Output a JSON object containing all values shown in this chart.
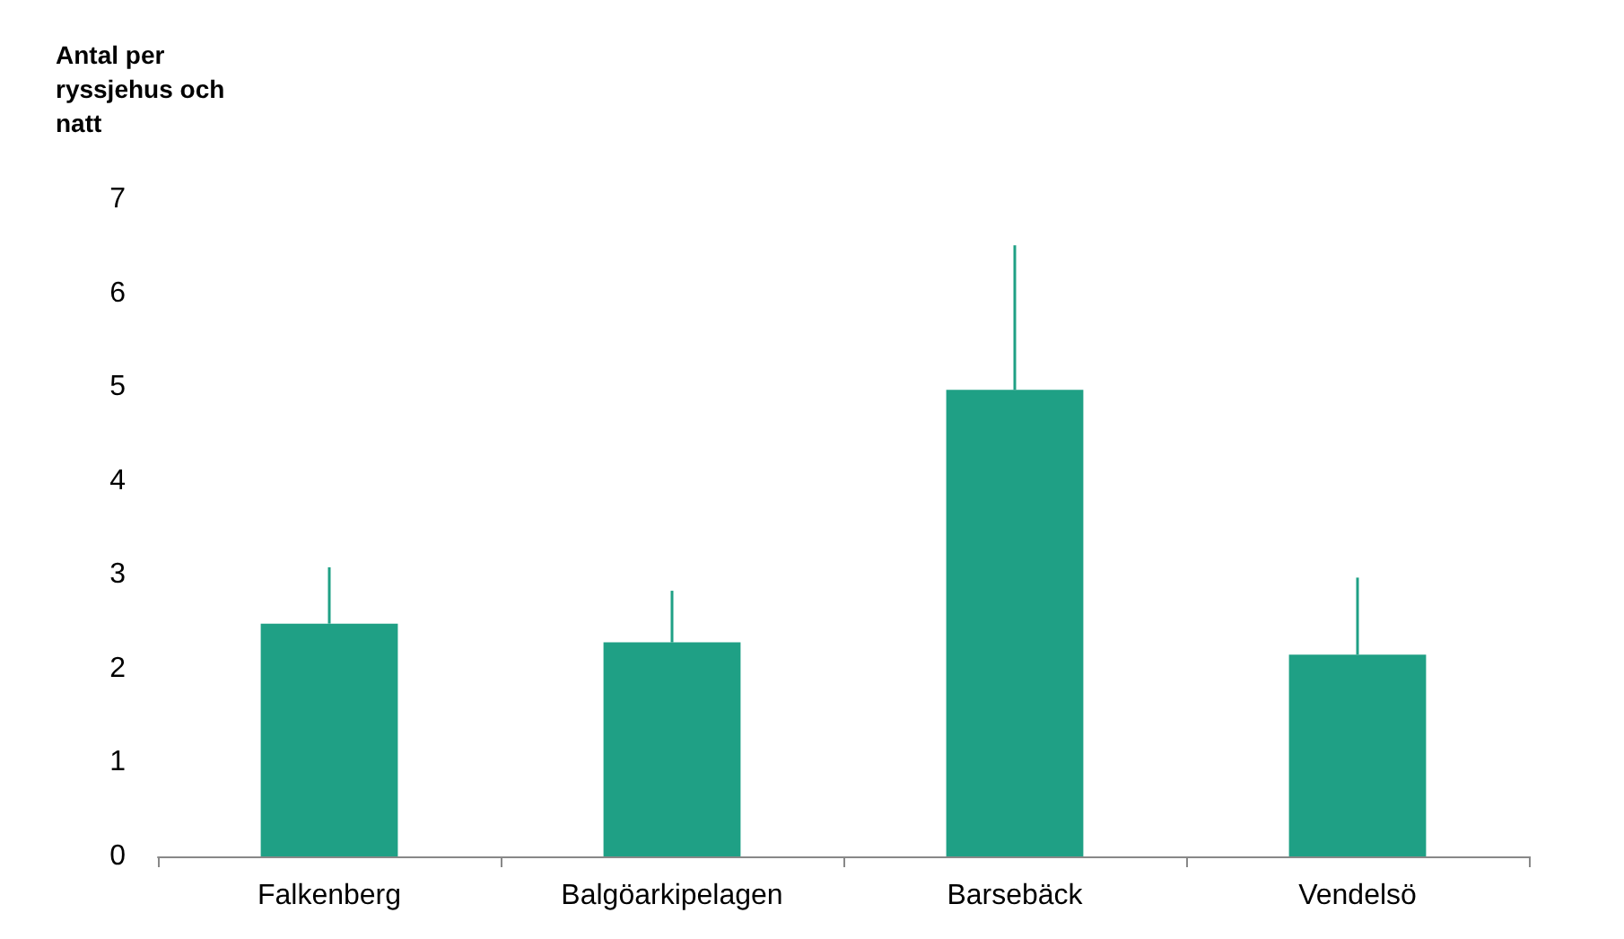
{
  "chart_data": {
    "type": "bar",
    "ylabel": "Antal per ryssjehus och natt",
    "categories": [
      "Falkenberg",
      "Balgöarkipelagen",
      "Barsebäck",
      "Vendelsö"
    ],
    "values": [
      2.48,
      2.28,
      4.97,
      2.15
    ],
    "errors": [
      [
        2.48,
        3.08
      ],
      [
        2.28,
        2.83
      ],
      [
        4.97,
        6.51
      ],
      [
        2.15,
        2.97
      ]
    ],
    "color": "#1fa085",
    "ylim": [
      0,
      7
    ],
    "yticks": [
      0,
      1,
      2,
      3,
      4,
      5,
      6,
      7
    ],
    "grid": false
  }
}
